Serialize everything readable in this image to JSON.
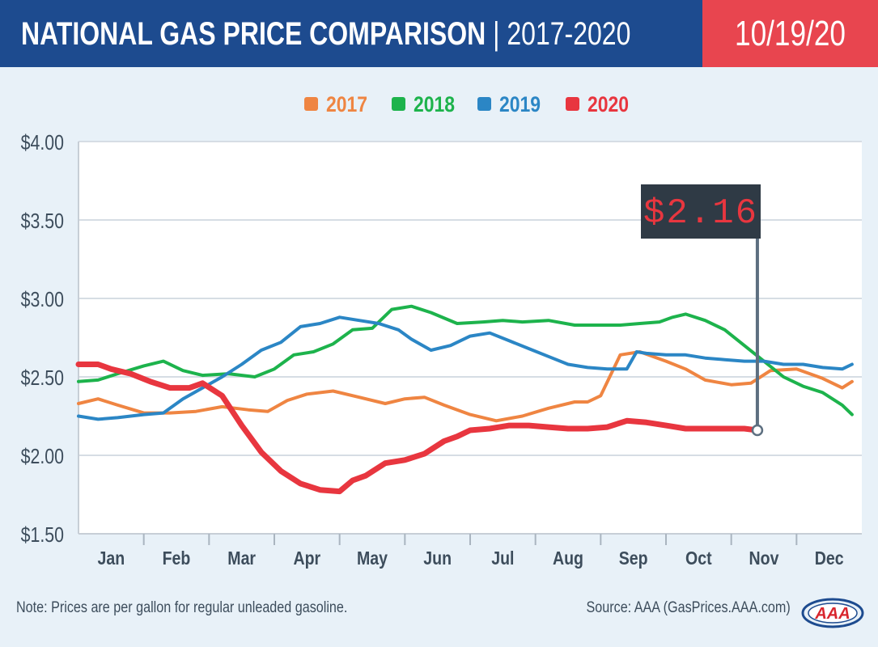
{
  "header": {
    "title_bold": "NATIONAL GAS PRICE COMPARISON",
    "title_rest": " | 2017-2020",
    "date": "10/19/20",
    "bg_color": "#1d4b8f",
    "date_bg_color": "#e8454f"
  },
  "footer": {
    "note": "Note: Prices are per gallon for regular unleaded gasoline.",
    "source": "Source: AAA (GasPrices.AAA.com)",
    "logo_text": "AAA"
  },
  "chart_data": {
    "type": "line",
    "ylim": [
      1.5,
      4.0
    ],
    "xlim": [
      0,
      12
    ],
    "y_ticks": [
      1.5,
      2.0,
      2.5,
      3.0,
      3.5,
      4.0
    ],
    "y_tick_labels": [
      "$1.50",
      "$2.00",
      "$2.50",
      "$3.00",
      "$3.50",
      "$4.00"
    ],
    "categories": [
      "Jan",
      "Feb",
      "Mar",
      "Apr",
      "May",
      "Jun",
      "Jul",
      "Aug",
      "Sep",
      "Oct",
      "Nov",
      "Dec"
    ],
    "grid": true,
    "legend_placement": "top-center",
    "callout": {
      "label": "$2.16",
      "x": 10.4,
      "y": 2.16
    },
    "series": [
      {
        "name": "2017",
        "color": "#ef8542",
        "x": [
          0,
          0.3,
          0.6,
          1.0,
          1.4,
          1.8,
          2.2,
          2.6,
          2.9,
          3.2,
          3.5,
          3.9,
          4.3,
          4.7,
          5.0,
          5.3,
          5.6,
          6.0,
          6.4,
          6.8,
          7.2,
          7.6,
          7.8,
          8.0,
          8.3,
          8.6,
          9.0,
          9.3,
          9.6,
          10.0,
          10.3,
          10.6,
          11.0,
          11.4,
          11.7,
          11.85
        ],
        "values": [
          2.33,
          2.36,
          2.32,
          2.27,
          2.27,
          2.28,
          2.31,
          2.29,
          2.28,
          2.35,
          2.39,
          2.41,
          2.37,
          2.33,
          2.36,
          2.37,
          2.32,
          2.26,
          2.22,
          2.25,
          2.3,
          2.34,
          2.34,
          2.38,
          2.64,
          2.66,
          2.6,
          2.55,
          2.48,
          2.45,
          2.46,
          2.54,
          2.55,
          2.49,
          2.43,
          2.47
        ]
      },
      {
        "name": "2018",
        "color": "#1db34c",
        "x": [
          0,
          0.3,
          0.6,
          1.0,
          1.3,
          1.6,
          1.9,
          2.3,
          2.7,
          3.0,
          3.3,
          3.6,
          3.9,
          4.2,
          4.5,
          4.8,
          5.1,
          5.4,
          5.8,
          6.2,
          6.5,
          6.8,
          7.2,
          7.6,
          8.0,
          8.3,
          8.6,
          8.9,
          9.1,
          9.3,
          9.6,
          9.9,
          10.2,
          10.5,
          10.8,
          11.1,
          11.4,
          11.7,
          11.85
        ],
        "values": [
          2.47,
          2.48,
          2.52,
          2.57,
          2.6,
          2.54,
          2.51,
          2.52,
          2.5,
          2.55,
          2.64,
          2.66,
          2.71,
          2.8,
          2.81,
          2.93,
          2.95,
          2.91,
          2.84,
          2.85,
          2.86,
          2.85,
          2.86,
          2.83,
          2.83,
          2.83,
          2.84,
          2.85,
          2.88,
          2.9,
          2.86,
          2.8,
          2.7,
          2.6,
          2.5,
          2.44,
          2.4,
          2.32,
          2.26
        ]
      },
      {
        "name": "2019",
        "color": "#2b86c5",
        "x": [
          0,
          0.3,
          0.6,
          1.0,
          1.3,
          1.6,
          1.9,
          2.2,
          2.5,
          2.8,
          3.1,
          3.4,
          3.7,
          4.0,
          4.3,
          4.6,
          4.9,
          5.1,
          5.4,
          5.7,
          6.0,
          6.3,
          6.6,
          6.9,
          7.2,
          7.5,
          7.8,
          8.1,
          8.4,
          8.55,
          8.7,
          9.0,
          9.3,
          9.6,
          9.9,
          10.2,
          10.5,
          10.8,
          11.1,
          11.4,
          11.7,
          11.85
        ],
        "values": [
          2.25,
          2.23,
          2.24,
          2.26,
          2.27,
          2.36,
          2.43,
          2.5,
          2.58,
          2.67,
          2.72,
          2.82,
          2.84,
          2.88,
          2.86,
          2.84,
          2.8,
          2.74,
          2.67,
          2.7,
          2.76,
          2.78,
          2.73,
          2.68,
          2.63,
          2.58,
          2.56,
          2.55,
          2.55,
          2.66,
          2.65,
          2.64,
          2.64,
          2.62,
          2.61,
          2.6,
          2.6,
          2.58,
          2.58,
          2.56,
          2.55,
          2.58
        ]
      },
      {
        "name": "2020",
        "color": "#e8363f",
        "x": [
          0,
          0.15,
          0.3,
          0.5,
          0.8,
          1.1,
          1.4,
          1.7,
          1.9,
          2.2,
          2.5,
          2.8,
          3.1,
          3.4,
          3.7,
          4.0,
          4.2,
          4.4,
          4.7,
          5.0,
          5.3,
          5.6,
          5.8,
          6.0,
          6.3,
          6.6,
          6.9,
          7.2,
          7.5,
          7.8,
          8.1,
          8.4,
          8.7,
          9.0,
          9.3,
          9.6,
          9.9,
          10.2,
          10.4
        ],
        "values": [
          2.58,
          2.58,
          2.58,
          2.55,
          2.52,
          2.47,
          2.43,
          2.43,
          2.46,
          2.38,
          2.19,
          2.02,
          1.9,
          1.82,
          1.78,
          1.77,
          1.84,
          1.87,
          1.95,
          1.97,
          2.01,
          2.09,
          2.12,
          2.16,
          2.17,
          2.19,
          2.19,
          2.18,
          2.17,
          2.17,
          2.18,
          2.22,
          2.21,
          2.19,
          2.17,
          2.17,
          2.17,
          2.17,
          2.16
        ]
      }
    ]
  }
}
